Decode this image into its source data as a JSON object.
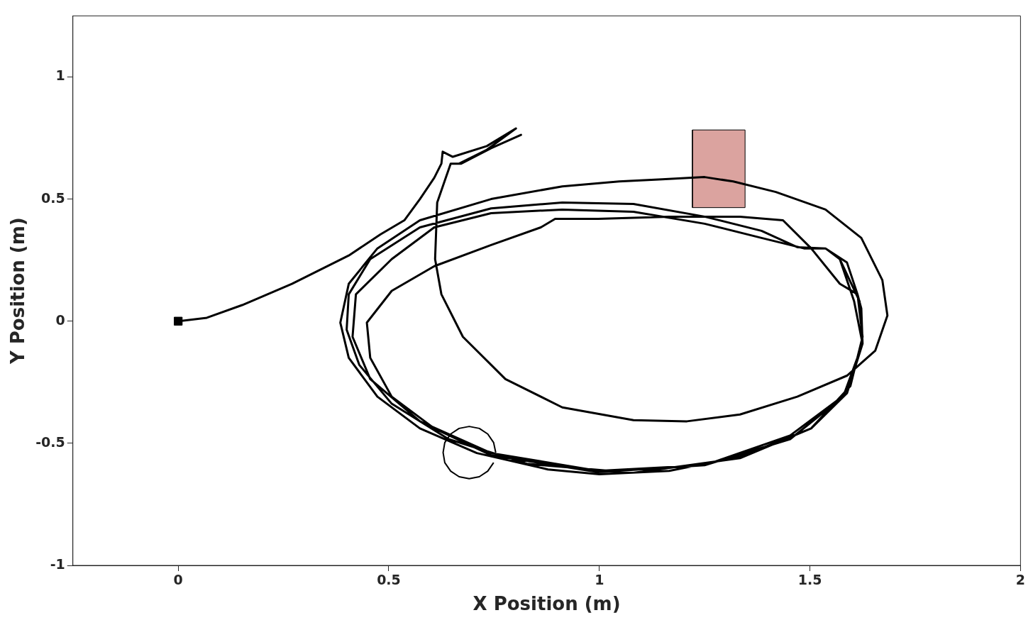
{
  "chart_data": {
    "type": "line",
    "xlabel": "X Position (m)",
    "ylabel": "Y Position (m)",
    "xlim": [
      -0.25,
      2
    ],
    "ylim": [
      -1,
      1.25
    ],
    "xticks": [
      0,
      0.5,
      1,
      1.5,
      2
    ],
    "yticks": [
      -1,
      -0.5,
      0,
      0.5,
      1
    ],
    "grid": false,
    "legend": false,
    "series": [
      {
        "color": "#000000",
        "line_style": "solid",
        "marker": "none",
        "x": [
          0,
          0.068,
          0.152,
          0.27,
          0.405,
          0.48,
          0.537,
          0.574,
          0.608,
          0.625,
          0.628,
          0.652,
          0.733,
          0.802,
          0.733,
          0.667,
          0.743,
          0.814,
          0.743,
          0.672,
          0.647,
          0.615,
          0.61,
          0.625,
          0.676,
          0.777,
          0.912,
          1.081,
          1.208,
          1.334,
          1.47,
          1.588,
          1.655,
          1.684,
          1.672,
          1.622,
          1.537,
          1.419,
          1.318,
          1.25,
          1.149,
          1.047,
          0.912,
          0.743,
          0.574,
          0.473,
          0.405,
          0.385,
          0.405,
          0.473,
          0.574,
          0.709,
          0.878,
          1.0,
          1.166,
          1.334,
          1.503,
          1.588,
          1.625,
          1.622,
          1.613,
          1.571,
          1.503,
          1.436,
          1.334,
          1.166,
          0.997,
          0.895,
          0.861,
          0.743,
          0.608,
          0.507,
          0.448,
          0.456,
          0.507,
          0.608,
          0.743,
          0.997,
          1.25,
          1.453,
          1.579,
          1.625,
          1.618,
          1.571,
          1.537,
          1.47,
          1.385,
          1.25,
          1.081,
          0.912,
          0.743,
          0.574,
          0.456,
          0.405,
          0.4,
          0.43,
          0.507,
          0.642,
          0.828,
          1.081,
          1.334,
          1.503,
          1.596,
          1.625,
          1.613,
          1.588,
          1.537,
          1.486,
          1.385,
          1.25,
          1.081,
          0.912,
          0.743,
          0.608,
          0.507,
          0.422,
          0.414,
          0.456,
          0.574,
          0.743,
          0.997,
          1.25,
          1.453,
          1.588,
          1.625,
          1.605,
          1.571
        ],
        "values": [
          0,
          0.014,
          0.066,
          0.153,
          0.269,
          0.355,
          0.413,
          0.5,
          0.587,
          0.645,
          0.694,
          0.673,
          0.717,
          0.789,
          0.702,
          0.645,
          0.708,
          0.763,
          0.708,
          0.645,
          0.645,
          0.486,
          0.254,
          0.11,
          -0.064,
          -0.237,
          -0.353,
          -0.405,
          -0.41,
          -0.382,
          -0.309,
          -0.223,
          -0.121,
          0.023,
          0.168,
          0.341,
          0.457,
          0.529,
          0.572,
          0.59,
          0.581,
          0.572,
          0.552,
          0.5,
          0.413,
          0.298,
          0.153,
          -0.006,
          -0.15,
          -0.309,
          -0.439,
          -0.54,
          -0.607,
          -0.627,
          -0.613,
          -0.555,
          -0.439,
          -0.295,
          -0.092,
          0.052,
          0.11,
          0.153,
          0.298,
          0.413,
          0.428,
          0.428,
          0.419,
          0.419,
          0.384,
          0.312,
          0.225,
          0.124,
          -0.006,
          -0.15,
          -0.309,
          -0.439,
          -0.549,
          -0.618,
          -0.59,
          -0.483,
          -0.309,
          -0.092,
          0.081,
          0.254,
          0.298,
          0.303,
          0.37,
          0.428,
          0.48,
          0.486,
          0.462,
          0.384,
          0.254,
          0.11,
          -0.035,
          -0.179,
          -0.338,
          -0.483,
          -0.584,
          -0.621,
          -0.561,
          -0.439,
          -0.266,
          -0.064,
          0.11,
          0.24,
          0.298,
          0.298,
          0.341,
          0.399,
          0.448,
          0.457,
          0.442,
          0.384,
          0.254,
          0.11,
          -0.064,
          -0.237,
          -0.41,
          -0.54,
          -0.613,
          -0.59,
          -0.468,
          -0.295,
          -0.092,
          0.081,
          0.254
        ]
      },
      {
        "type": "scatter",
        "color": "#000000",
        "marker": "square",
        "x": [
          0
        ],
        "values": [
          0
        ]
      },
      {
        "type": "line",
        "color": "#000000",
        "line_style": "solid",
        "marker": "none",
        "x": [
          0.754,
          0.749,
          0.735,
          0.715,
          0.691,
          0.667,
          0.647,
          0.633,
          0.629,
          0.633,
          0.647,
          0.667,
          0.691,
          0.715,
          0.735,
          0.749
        ],
        "values": [
          -0.538,
          -0.497,
          -0.462,
          -0.439,
          -0.431,
          -0.439,
          -0.462,
          -0.497,
          -0.538,
          -0.579,
          -0.614,
          -0.637,
          -0.645,
          -0.637,
          -0.614,
          -0.579
        ]
      },
      {
        "type": "area",
        "color": "#dba39f",
        "x": [
          1.221,
          1.346,
          1.346,
          1.221,
          1.221
        ],
        "values": [
          0.465,
          0.465,
          0.783,
          0.783,
          0.465
        ]
      }
    ]
  }
}
